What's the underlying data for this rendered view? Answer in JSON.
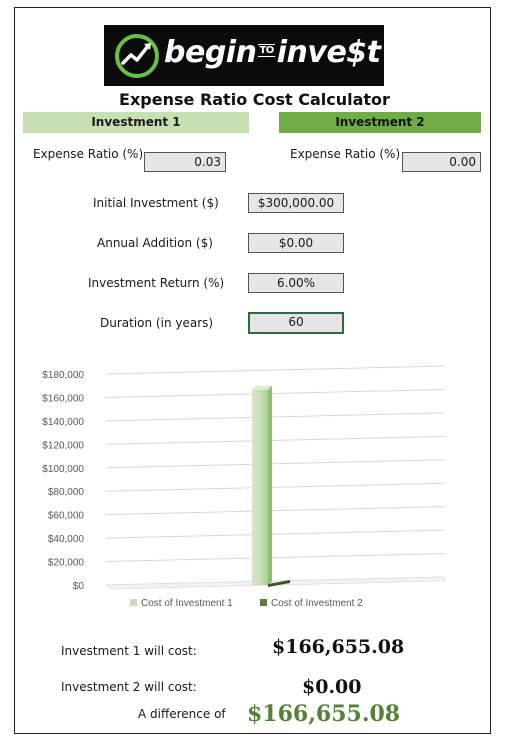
{
  "logo": {
    "text_begin": "begin",
    "text_to": "TO",
    "text_invest": "inve$t"
  },
  "title": "Expense Ratio Cost Calculator",
  "investment1": {
    "header": "Investment 1",
    "expense_ratio_label": "Expense Ratio (%)",
    "expense_ratio_value": "0.03"
  },
  "investment2": {
    "header": "Investment 2",
    "expense_ratio_label": "Expense Ratio (%)",
    "expense_ratio_value": "0.00"
  },
  "inputs": {
    "initial_label": "Initial Investment ($)",
    "initial_value": "$300,000.00",
    "addition_label": "Annual Addition ($)",
    "addition_value": "$0.00",
    "return_label": "Investment Return (%)",
    "return_value": "6.00%",
    "duration_label": "Duration (in years)",
    "duration_value": "60"
  },
  "colors": {
    "investment1": "#c6e0b4",
    "investment2": "#70ad47",
    "difference": "#548235"
  },
  "chart_data": {
    "type": "bar",
    "categories": [
      ""
    ],
    "series": [
      {
        "name": "Cost of Investment 1",
        "values": [
          166655.08
        ]
      },
      {
        "name": "Cost of Investment 2",
        "values": [
          0
        ]
      }
    ],
    "ylim": [
      0,
      180000
    ],
    "yticks": [
      "$0",
      "$20,000",
      "$40,000",
      "$60,000",
      "$80,000",
      "$100,000",
      "$120,000",
      "$140,000",
      "$160,000",
      "$180,000"
    ],
    "grid": true,
    "legend": "bottom"
  },
  "results": {
    "inv1_label": "Investment 1 will cost:",
    "inv1_value": "$166,655.08",
    "inv2_label": "Investment 2 will cost:",
    "inv2_value": "$0.00",
    "diff_label": "A difference of",
    "diff_value": "$166,655.08"
  }
}
